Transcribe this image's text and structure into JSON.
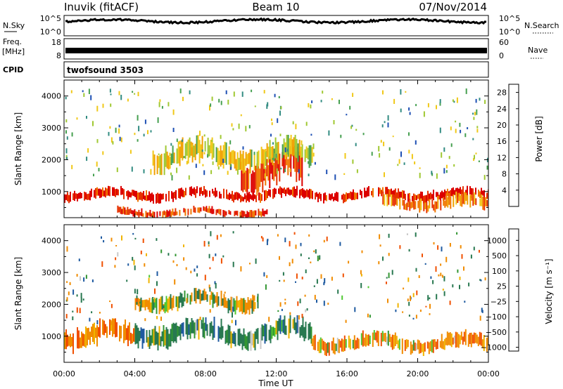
{
  "header": {
    "station": "Inuvik (fitACF)",
    "beam": "Beam 10",
    "date": "07/Nov/2014"
  },
  "strips": {
    "nsky": {
      "label": "N.Sky",
      "ticks": [
        "10^5",
        "10^0"
      ],
      "right_ticks": [
        "10^5",
        "10^0"
      ],
      "right_label": "N.Search"
    },
    "freq": {
      "label_top": "Freq.",
      "label_unit": "[MHz]",
      "ticks": [
        "18",
        "8"
      ],
      "right_ticks": [
        "60",
        "0"
      ],
      "right_label": "Nave"
    },
    "cpid": {
      "label": "CPID",
      "value": "twofsound 3503"
    }
  },
  "colors": {
    "power": [
      "#0a1ee6",
      "#1e50b4",
      "#328c82",
      "#46a050",
      "#a0c832",
      "#f0c818",
      "#f0a000",
      "#f07800",
      "#e63200",
      "#dc0000"
    ],
    "velocity": [
      "#e60000",
      "#f05000",
      "#f08c00",
      "#f0b400",
      "#c8c8c8",
      "#c8c8c8",
      "#50c832",
      "#329632",
      "#287850",
      "#1e5aa0",
      "#1432c8"
    ]
  },
  "chart_data": [
    {
      "type": "heatmap",
      "name": "power",
      "xlabel": "",
      "ylabel": "Slant Range [km]",
      "x_ticks": [
        "00:00",
        "04:00",
        "08:00",
        "12:00",
        "16:00",
        "20:00",
        "00:00"
      ],
      "xlim_hours": [
        0,
        24
      ],
      "ylim_km": [
        180,
        4500
      ],
      "y_ticks": [
        1000,
        2000,
        3000,
        4000
      ],
      "colorbar": {
        "label": "Power [dB]",
        "range": [
          0,
          30
        ],
        "ticks": [
          "4",
          "8",
          "12",
          "16",
          "20",
          "24",
          "28"
        ]
      },
      "echo_bands": [
        {
          "t_start": 0,
          "t_end": 24,
          "range_km": [
            700,
            1100
          ],
          "power_db": 28
        },
        {
          "t_start": 3,
          "t_end": 11.5,
          "range_km": [
            200,
            500
          ],
          "power_db": 26
        },
        {
          "t_start": 10,
          "t_end": 13.5,
          "range_km": [
            1000,
            2200
          ],
          "power_db": 26
        },
        {
          "t_start": 5,
          "t_end": 14,
          "range_km": [
            1700,
            2600
          ],
          "power_db": 16
        },
        {
          "t_start": 18,
          "t_end": 24,
          "range_km": [
            400,
            900
          ],
          "power_db": 22
        }
      ]
    },
    {
      "type": "heatmap",
      "name": "velocity",
      "xlabel": "Time UT",
      "ylabel": "Slant Range [km]",
      "x_ticks": [
        "00:00",
        "04:00",
        "08:00",
        "12:00",
        "16:00",
        "20:00",
        "00:00"
      ],
      "xlim_hours": [
        0,
        24
      ],
      "ylim_km": [
        180,
        4500
      ],
      "y_ticks": [
        1000,
        2000,
        3000,
        4000
      ],
      "colorbar": {
        "label": "Velocity [m s⁻¹]",
        "range": [
          -1200,
          1200
        ],
        "ticks": [
          "1000",
          "500",
          "100",
          "25",
          "−25",
          "−100",
          "−500",
          "−1000"
        ]
      },
      "echo_bands": [
        {
          "t_start": 0,
          "t_end": 4,
          "range_km": [
            600,
            1400
          ],
          "velocity": -400
        },
        {
          "t_start": 4,
          "t_end": 14,
          "range_km": [
            700,
            1500
          ],
          "velocity": 250
        },
        {
          "t_start": 14,
          "t_end": 24,
          "range_km": [
            500,
            1100
          ],
          "velocity": -300
        },
        {
          "t_start": 4,
          "t_end": 11,
          "range_km": [
            1800,
            2400
          ],
          "velocity": 0
        }
      ]
    }
  ]
}
